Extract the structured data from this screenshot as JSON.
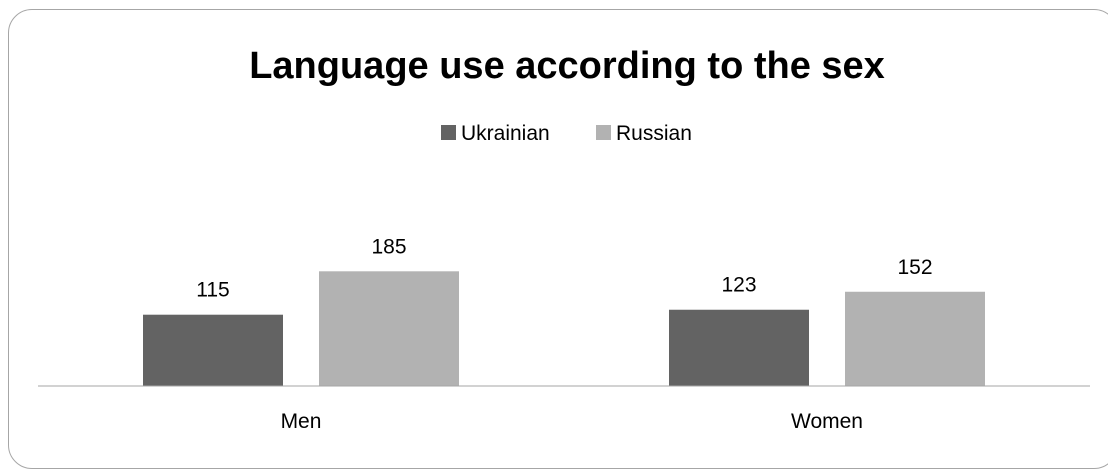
{
  "chart_data": {
    "type": "bar",
    "title": "Language use according to the sex",
    "categories": [
      "Men",
      "Women"
    ],
    "series": [
      {
        "name": "Ukrainian",
        "values": [
          115,
          123
        ],
        "color": "#636363"
      },
      {
        "name": "Russian",
        "values": [
          185,
          152
        ],
        "color": "#b2b2b2"
      }
    ],
    "legend_position": "top",
    "grid": false,
    "ylim": [
      0,
      200
    ],
    "xlabel": "",
    "ylabel": ""
  }
}
